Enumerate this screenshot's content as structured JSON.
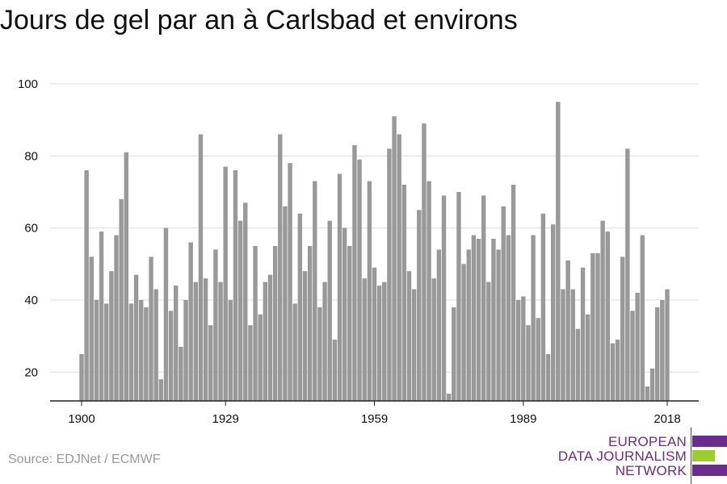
{
  "title": "Jours de gel par an à Carlsbad et environs",
  "source": "Source: EDJNet / ECMWF",
  "logo": {
    "line1": "EUROPEAN",
    "line2": "DATA JOURNALISM",
    "line3": "NETWORK",
    "colors": {
      "purple": "#6a2c8c",
      "green": "#9ccc2e"
    }
  },
  "colors": {
    "bar": "#999999",
    "grid": "#dddddd",
    "axis": "#222222",
    "text": "#111111",
    "muted": "#999999"
  },
  "chart_data": {
    "type": "bar",
    "title": "Jours de gel par an à Carlsbad et environs",
    "xlabel": "",
    "ylabel": "",
    "x_ticks": [
      "1900",
      "1929",
      "1959",
      "1989",
      "2018"
    ],
    "y_ticks": [
      20,
      40,
      60,
      80,
      100
    ],
    "ylim": [
      12,
      102
    ],
    "grid": true,
    "years": [
      1900,
      1901,
      1902,
      1903,
      1904,
      1905,
      1906,
      1907,
      1908,
      1909,
      1910,
      1911,
      1912,
      1913,
      1914,
      1915,
      1916,
      1917,
      1918,
      1919,
      1920,
      1921,
      1922,
      1923,
      1924,
      1925,
      1926,
      1927,
      1928,
      1929,
      1930,
      1931,
      1932,
      1933,
      1934,
      1935,
      1936,
      1937,
      1938,
      1939,
      1940,
      1941,
      1942,
      1943,
      1944,
      1945,
      1946,
      1947,
      1948,
      1949,
      1950,
      1951,
      1952,
      1953,
      1954,
      1955,
      1956,
      1957,
      1958,
      1959,
      1960,
      1961,
      1962,
      1963,
      1964,
      1965,
      1966,
      1967,
      1968,
      1969,
      1970,
      1971,
      1972,
      1973,
      1974,
      1975,
      1976,
      1977,
      1978,
      1979,
      1980,
      1981,
      1982,
      1983,
      1984,
      1985,
      1986,
      1987,
      1988,
      1989,
      1990,
      1991,
      1992,
      1993,
      1994,
      1995,
      1996,
      1997,
      1998,
      1999,
      2000,
      2001,
      2002,
      2003,
      2004,
      2005,
      2006,
      2007,
      2008,
      2009,
      2010,
      2011,
      2012,
      2013,
      2014,
      2015,
      2016,
      2017,
      2018
    ],
    "values": [
      25,
      76,
      52,
      40,
      59,
      39,
      48,
      58,
      68,
      81,
      39,
      47,
      40,
      38,
      52,
      43,
      18,
      60,
      37,
      44,
      27,
      40,
      56,
      45,
      86,
      46,
      33,
      54,
      45,
      77,
      40,
      76,
      62,
      67,
      33,
      55,
      36,
      45,
      47,
      55,
      86,
      66,
      78,
      39,
      64,
      48,
      55,
      73,
      38,
      45,
      62,
      29,
      75,
      60,
      55,
      83,
      79,
      46,
      73,
      49,
      44,
      45,
      82,
      91,
      86,
      72,
      48,
      43,
      65,
      89,
      73,
      46,
      54,
      69,
      14,
      38,
      70,
      50,
      54,
      58,
      57,
      69,
      45,
      57,
      54,
      66,
      58,
      72,
      40,
      41,
      33,
      58,
      35,
      64,
      25,
      61,
      95,
      43,
      51,
      43,
      32,
      49,
      36,
      53,
      53,
      62,
      59,
      28,
      29,
      52,
      82,
      37,
      42,
      58,
      16,
      21,
      38,
      40,
      43
    ]
  }
}
